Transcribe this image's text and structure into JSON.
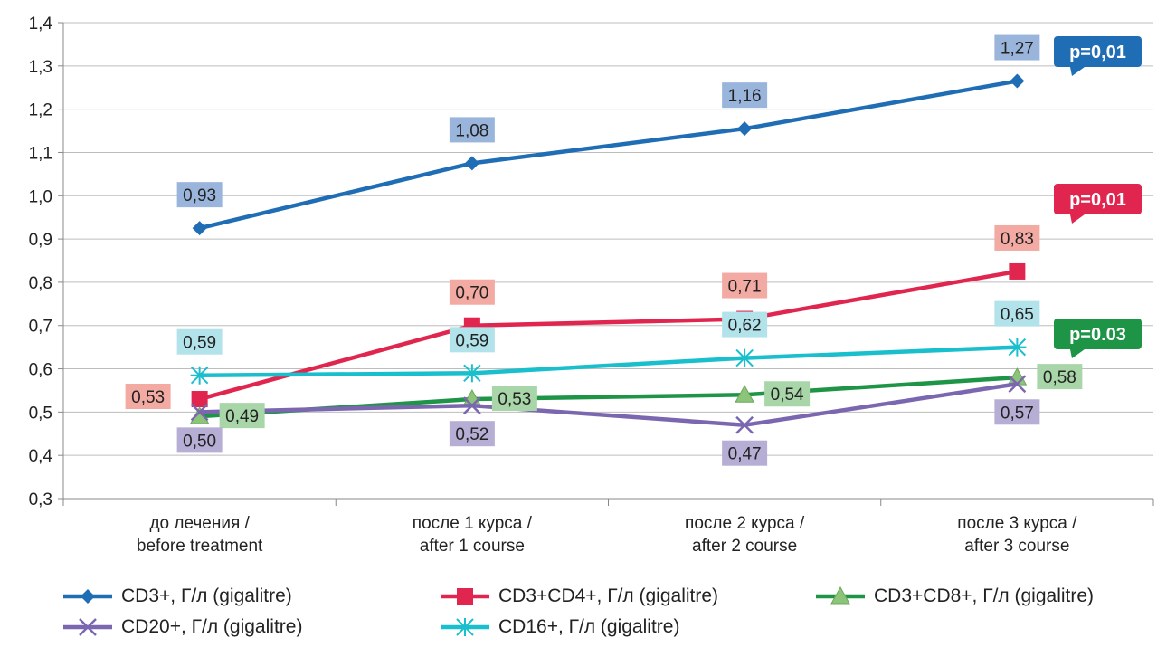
{
  "chart_data": {
    "type": "line",
    "categories": [
      [
        "до лечения /",
        "before treatment"
      ],
      [
        "после 1 курса /",
        "after 1 course"
      ],
      [
        "после 2 курса /",
        "after 2 course"
      ],
      [
        "после 3 курса /",
        "after 3 course"
      ]
    ],
    "ylim": [
      0.3,
      1.4
    ],
    "yticks": [
      "0,3",
      "0,4",
      "0,5",
      "0,6",
      "0,7",
      "0,8",
      "0,9",
      "1,0",
      "1,1",
      "1,2",
      "1,3",
      "1,4"
    ],
    "grid": true,
    "legend_position": "bottom",
    "series": [
      {
        "name": "CD3+, Г/л (gigalitre)",
        "color": "#1f6db5",
        "label_bg": "#9ab5dc",
        "marker": "diamond",
        "values": [
          0.925,
          1.075,
          1.155,
          1.265
        ],
        "labels": [
          "0,93",
          "1,08",
          "1,16",
          "1,27"
        ],
        "label_pos": [
          "above",
          "above",
          "above",
          "above"
        ]
      },
      {
        "name": "CD3+CD4+, Г/л (gigalitre)",
        "color": "#e0264e",
        "label_bg": "#f2aaa2",
        "marker": "square",
        "values": [
          0.53,
          0.7,
          0.715,
          0.825
        ],
        "labels": [
          "0,53",
          "0,70",
          "0,71",
          "0,83"
        ],
        "label_pos": [
          "left",
          "above",
          "above",
          "above"
        ]
      },
      {
        "name": "CD3+CD8+, Г/л (gigalitre)",
        "color": "#1e9447",
        "label_bg": "#a8d6a8",
        "marker": "triangle",
        "values": [
          0.49,
          0.53,
          0.54,
          0.58
        ],
        "labels": [
          "0,49",
          "0,53",
          "0,54",
          "0,58"
        ],
        "label_pos": [
          "right",
          "right",
          "right",
          "right"
        ]
      },
      {
        "name": "CD20+, Г/л (gigalitre)",
        "color": "#7b67b0",
        "label_bg": "#b6aed4",
        "marker": "x",
        "values": [
          0.5,
          0.515,
          0.47,
          0.565
        ],
        "labels": [
          "0,50",
          "0,52",
          "0,47",
          "0,57"
        ],
        "label_pos": [
          "below",
          "below",
          "below",
          "below"
        ]
      },
      {
        "name": "CD16+, Г/л (gigalitre)",
        "color": "#19bfcc",
        "label_bg": "#b2e2ea",
        "marker": "star",
        "values": [
          0.585,
          0.59,
          0.625,
          0.65
        ],
        "labels": [
          "0,59",
          "0,59",
          "0,62",
          "0,65"
        ],
        "label_pos": [
          "above",
          "above",
          "above",
          "above"
        ]
      }
    ],
    "annotations": [
      {
        "text": "p=0,01",
        "series": 0,
        "color": "#1f6db5"
      },
      {
        "text": "p=0,01",
        "series": 1,
        "color": "#e0264e"
      },
      {
        "text": "p=0.03",
        "series": 2,
        "color": "#1e9447"
      }
    ]
  }
}
